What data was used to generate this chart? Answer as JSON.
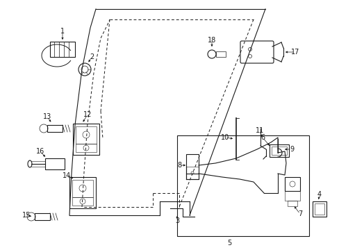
{
  "bg_color": "#ffffff",
  "line_color": "#1a1a1a",
  "fig_width": 4.89,
  "fig_height": 3.6,
  "dpi": 100,
  "label_fs": 7,
  "lw": 0.8
}
